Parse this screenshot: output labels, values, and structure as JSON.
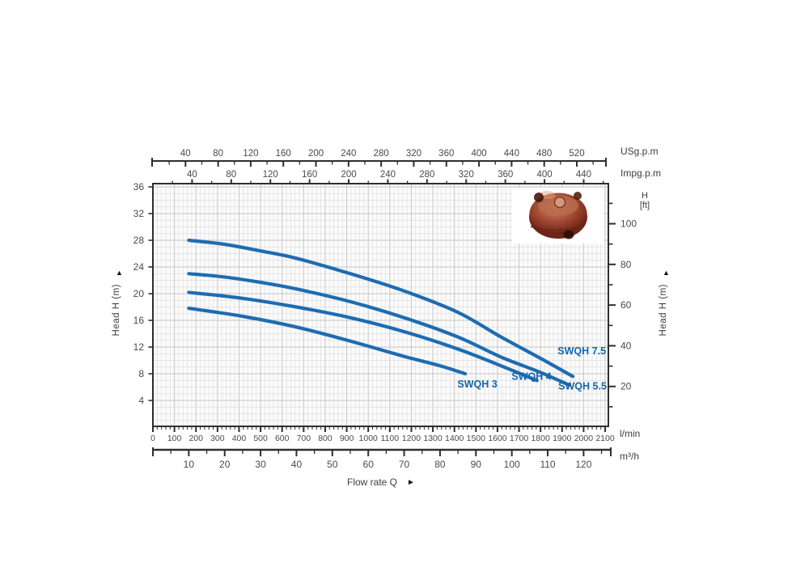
{
  "chart_data": {
    "type": "line",
    "xlabel": "Flow rate Q",
    "axes": {
      "usgpm": {
        "label": "USg.p.m",
        "ticks": [
          40,
          80,
          120,
          160,
          200,
          240,
          280,
          320,
          360,
          400,
          440,
          480,
          520
        ],
        "minor_step": 20
      },
      "impgpm": {
        "label": "Impg.p.m",
        "ticks": [
          40,
          80,
          120,
          160,
          200,
          240,
          280,
          320,
          360,
          400,
          440
        ],
        "minor_step": 20
      },
      "lmin": {
        "label": "l/min",
        "ticks": [
          0,
          100,
          200,
          300,
          400,
          500,
          600,
          700,
          800,
          900,
          1000,
          1100,
          1200,
          1300,
          1400,
          1500,
          1600,
          1700,
          1800,
          1900,
          2000,
          2100
        ],
        "minor_step": 20
      },
      "m3h": {
        "label": "m³/h",
        "ticks": [
          10,
          20,
          30,
          40,
          50,
          60,
          70,
          80,
          90,
          100,
          110,
          120
        ],
        "minor_step": 5
      },
      "head_m": {
        "label": "Head H (m)",
        "ticks": [
          4,
          8,
          12,
          16,
          20,
          24,
          28,
          32,
          36
        ],
        "minor_step": 1
      },
      "head_ft": {
        "label_line1": "H",
        "label_line2": "[ft]",
        "axis_title": "Head H (m)",
        "ticks": [
          20,
          40,
          60,
          80,
          100
        ],
        "minor_step": 10
      }
    },
    "series": [
      {
        "name": "SWQH 7.5",
        "points": [
          [
            10,
            28
          ],
          [
            20,
            27.4
          ],
          [
            30,
            26.4
          ],
          [
            40,
            25.3
          ],
          [
            55,
            23
          ],
          [
            70,
            20.4
          ],
          [
            85,
            17.2
          ],
          [
            97,
            13.5
          ],
          [
            108,
            10.3
          ],
          [
            117,
            7.6
          ]
        ],
        "label_at": [
          119.5,
          11.4
        ]
      },
      {
        "name": "SWQH 5.5",
        "points": [
          [
            10,
            23
          ],
          [
            20,
            22.5
          ],
          [
            30,
            21.7
          ],
          [
            40,
            20.7
          ],
          [
            55,
            18.8
          ],
          [
            70,
            16.4
          ],
          [
            85,
            13.5
          ],
          [
            97,
            10.5
          ],
          [
            108,
            8.2
          ],
          [
            116,
            6.3
          ]
        ],
        "label_at": [
          119.7,
          6.1
        ]
      },
      {
        "name": "SWQH 4",
        "points": [
          [
            10,
            20.2
          ],
          [
            25,
            19.3
          ],
          [
            40,
            18.0
          ],
          [
            55,
            16.4
          ],
          [
            70,
            14.3
          ],
          [
            85,
            11.7
          ],
          [
            96,
            9.4
          ],
          [
            107,
            7.0
          ]
        ],
        "label_at": [
          105.5,
          7.6
        ]
      },
      {
        "name": "SWQH 3",
        "points": [
          [
            10,
            17.8
          ],
          [
            25,
            16.6
          ],
          [
            40,
            15.0
          ],
          [
            55,
            12.9
          ],
          [
            70,
            10.6
          ],
          [
            80,
            9.2
          ],
          [
            87,
            8.0
          ]
        ],
        "label_at": [
          90.4,
          6.4
        ]
      }
    ],
    "colors": {
      "curve": "#1e6cb2",
      "series_label": "#1565ae",
      "axis": "#2e2e2e",
      "tick_text": "#4a4a4a",
      "grid_minor": "#dddddd",
      "grid_major": "#c5c5c5",
      "plot_bg": "#fbfbfb"
    },
    "arrows": {
      "up": "▲",
      "right": "►"
    }
  }
}
